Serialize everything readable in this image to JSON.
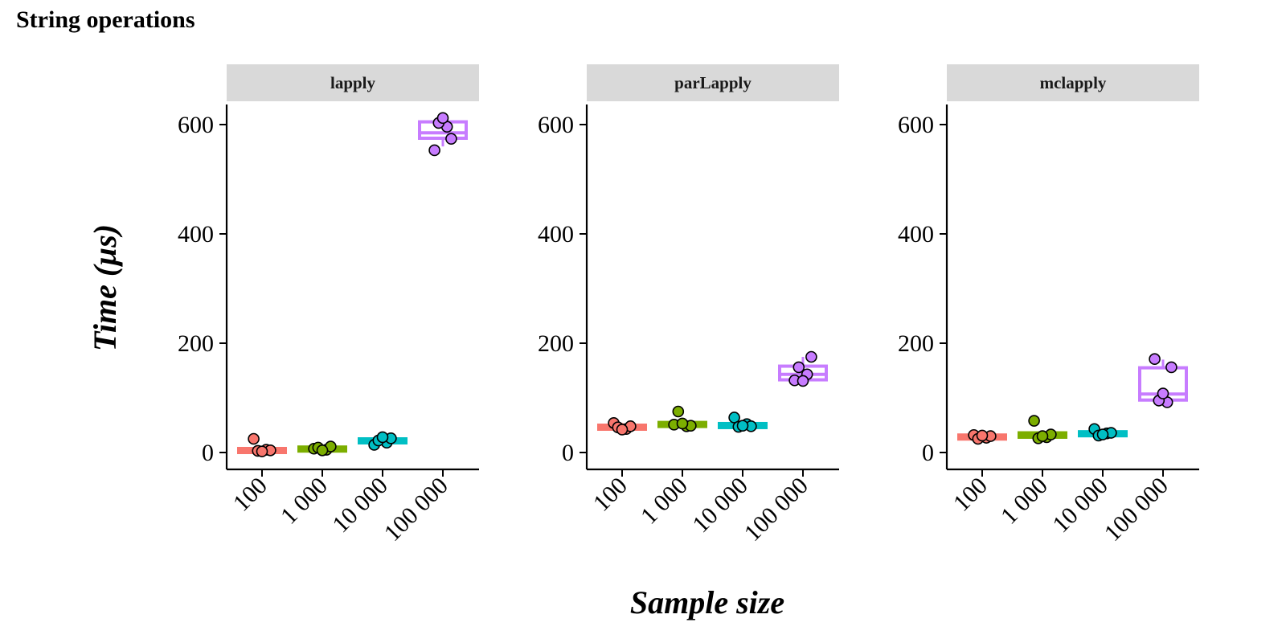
{
  "chart_data": {
    "type": "box",
    "title": "String operations",
    "xlabel": "Sample size",
    "ylabel": "Time (µs)",
    "ylim": [
      0,
      640
    ],
    "y_ticks": [
      0,
      200,
      400,
      600
    ],
    "categories": [
      "100",
      "1 000",
      "10 000",
      "100 000"
    ],
    "category_colors": [
      "#f8766d",
      "#7cae00",
      "#00bfc4",
      "#c77cff"
    ],
    "grid": false,
    "legend": "none",
    "panels": [
      {
        "name": "lapply",
        "groups": [
          {
            "category": "100",
            "box": {
              "min": 2,
              "q1": 3,
              "median": 5,
              "q3": 6,
              "max": 8
            },
            "points": [
              25,
              5,
              3,
              4,
              2
            ]
          },
          {
            "category": "1 000",
            "box": {
              "min": 5,
              "q1": 6,
              "median": 8,
              "q3": 10,
              "max": 12
            },
            "points": [
              7,
              5,
              9,
              11,
              4
            ]
          },
          {
            "category": "10 000",
            "box": {
              "min": 15,
              "q1": 18,
              "median": 21,
              "q3": 25,
              "max": 28
            },
            "points": [
              14,
              18,
              22,
              26,
              28
            ]
          },
          {
            "category": "100 000",
            "box": {
              "min": 560,
              "q1": 575,
              "median": 585,
              "q3": 605,
              "max": 612
            },
            "points": [
              553,
              596,
              603,
              574,
              612
            ]
          }
        ]
      },
      {
        "name": "parLapply",
        "groups": [
          {
            "category": "100",
            "box": {
              "min": 40,
              "q1": 43,
              "median": 46,
              "q3": 50,
              "max": 54
            },
            "points": [
              54,
              43,
              46,
              48,
              42
            ]
          },
          {
            "category": "1 000",
            "box": {
              "min": 47,
              "q1": 49,
              "median": 52,
              "q3": 55,
              "max": 60
            },
            "points": [
              51,
              48,
              75,
              49,
              53
            ]
          },
          {
            "category": "10 000",
            "box": {
              "min": 46,
              "q1": 48,
              "median": 50,
              "q3": 53,
              "max": 56
            },
            "points": [
              64,
              52,
              47,
              48,
              49
            ]
          },
          {
            "category": "100 000",
            "box": {
              "min": 130,
              "q1": 133,
              "median": 143,
              "q3": 158,
              "max": 175
            },
            "points": [
              132,
              143,
              156,
              175,
              131
            ]
          }
        ]
      },
      {
        "name": "mclapply",
        "groups": [
          {
            "category": "100",
            "box": {
              "min": 24,
              "q1": 26,
              "median": 29,
              "q3": 32,
              "max": 34
            },
            "points": [
              32,
              27,
              25,
              30,
              31
            ]
          },
          {
            "category": "1 000",
            "box": {
              "min": 26,
              "q1": 28,
              "median": 31,
              "q3": 36,
              "max": 40
            },
            "points": [
              58,
              28,
              26,
              33,
              30
            ]
          },
          {
            "category": "10 000",
            "box": {
              "min": 30,
              "q1": 32,
              "median": 35,
              "q3": 38,
              "max": 42
            },
            "points": [
              43,
              35,
              31,
              36,
              33
            ]
          },
          {
            "category": "100 000",
            "box": {
              "min": 92,
              "q1": 96,
              "median": 107,
              "q3": 155,
              "max": 170
            },
            "points": [
              171,
              92,
              95,
              156,
              108
            ]
          }
        ]
      }
    ]
  }
}
